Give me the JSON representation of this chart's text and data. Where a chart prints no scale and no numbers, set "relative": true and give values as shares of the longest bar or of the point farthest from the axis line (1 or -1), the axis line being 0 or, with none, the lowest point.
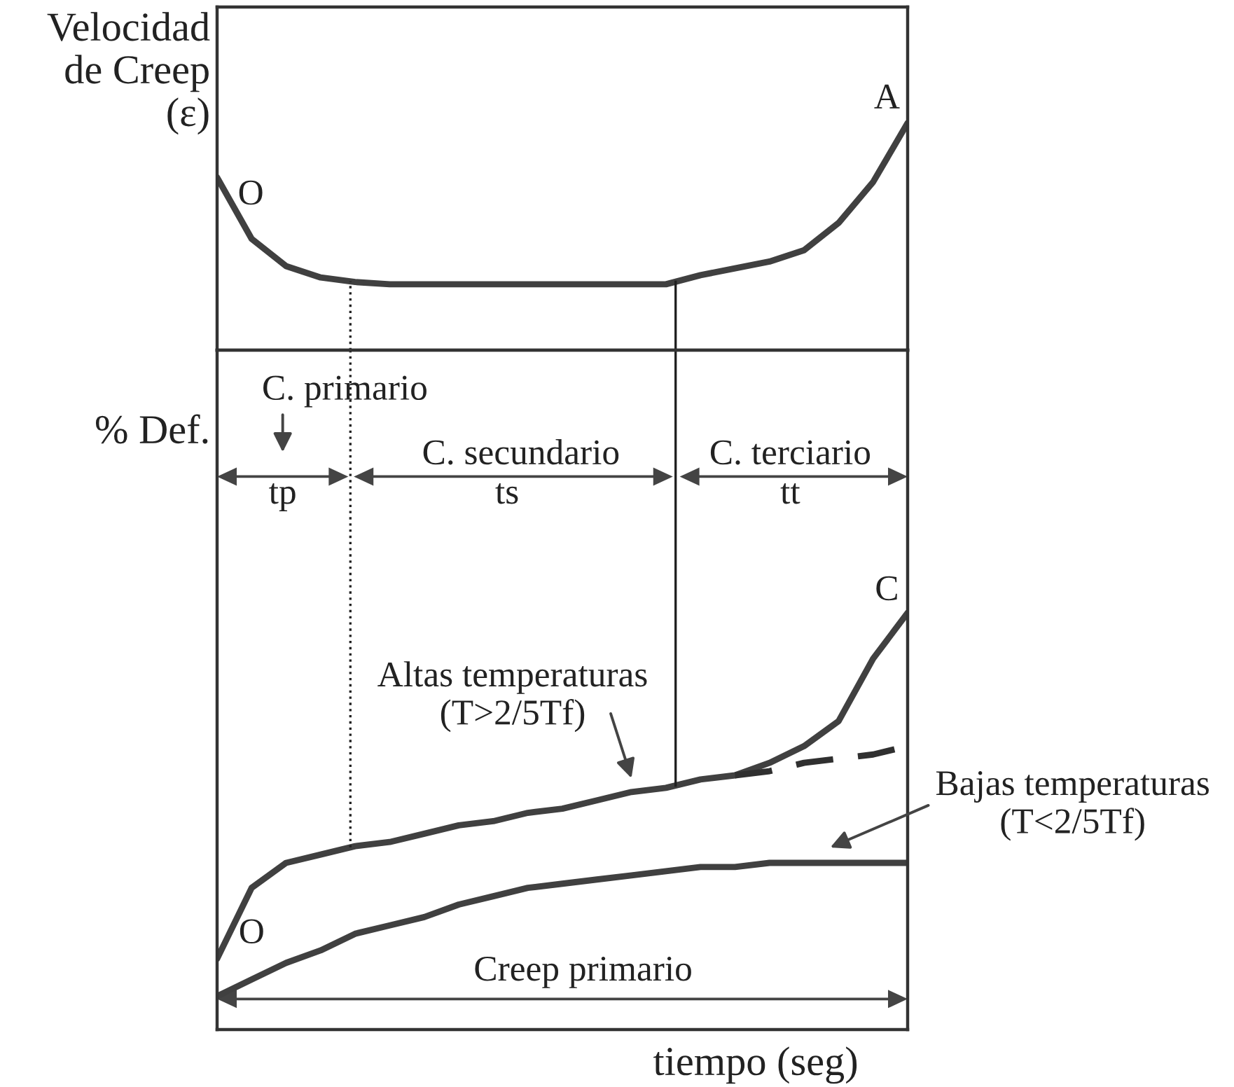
{
  "chart_data": [
    {
      "type": "line",
      "relative": true,
      "grid": false,
      "ylabel": "Velocidad\nde Creep\n(ε)",
      "categories": [
        null,
        null,
        null,
        null,
        null,
        null,
        null,
        null,
        null,
        null,
        null,
        null,
        null,
        null,
        null,
        null,
        null,
        null,
        null,
        null,
        null
      ],
      "series": [
        {
          "color": "#404040",
          "line_style": "solid",
          "values": [
            0.76,
            0.49,
            0.37,
            0.32,
            0.3,
            0.29,
            0.29,
            0.29,
            0.29,
            0.29,
            0.29,
            0.29,
            0.29,
            0.29,
            0.33,
            0.36,
            0.39,
            0.44,
            0.56,
            0.74,
            1
          ]
        }
      ],
      "annotations": [
        "O",
        "A"
      ]
    },
    {
      "type": "line",
      "relative": true,
      "grid": false,
      "ylabel": "% Def.",
      "xlabel": "tiempo (seg)",
      "categories": [
        null,
        null,
        null,
        null,
        null,
        null,
        null,
        null,
        null,
        null,
        null,
        null,
        null,
        null,
        null,
        null,
        null,
        null,
        null,
        null,
        null
      ],
      "series": [
        {
          "color": "#404040",
          "line_style": "solid",
          "values": [
            0.17,
            0.34,
            0.4,
            0.42,
            0.44,
            0.45,
            0.47,
            0.49,
            0.5,
            0.52,
            0.53,
            0.55,
            0.57,
            0.58,
            0.6,
            0.61,
            0.64,
            0.68,
            0.74,
            0.89,
            1
          ]
        },
        {
          "color": "#303030",
          "line_style": "dashed",
          "values": [
            null,
            null,
            null,
            null,
            null,
            null,
            null,
            null,
            null,
            null,
            null,
            null,
            null,
            null,
            null,
            0.61,
            0.62,
            0.64,
            0.65,
            0.66,
            0.68
          ]
        },
        {
          "color": "#404040",
          "line_style": "solid",
          "values": [
            0.08,
            0.12,
            0.16,
            0.19,
            0.23,
            0.25,
            0.27,
            0.3,
            0.32,
            0.34,
            0.35,
            0.36,
            0.37,
            0.38,
            0.39,
            0.39,
            0.4,
            0.4,
            0.4,
            0.4,
            0.4
          ]
        }
      ],
      "annotations": [
        "C. primario",
        "tp",
        "C. secundario",
        "ts",
        "C. terciario",
        "tt",
        "C",
        "Altas temperaturas\n(T>2/5Tf)",
        "Bajas temperaturas\n(T<2/5Tf)",
        "O",
        "Creep primario"
      ]
    }
  ]
}
